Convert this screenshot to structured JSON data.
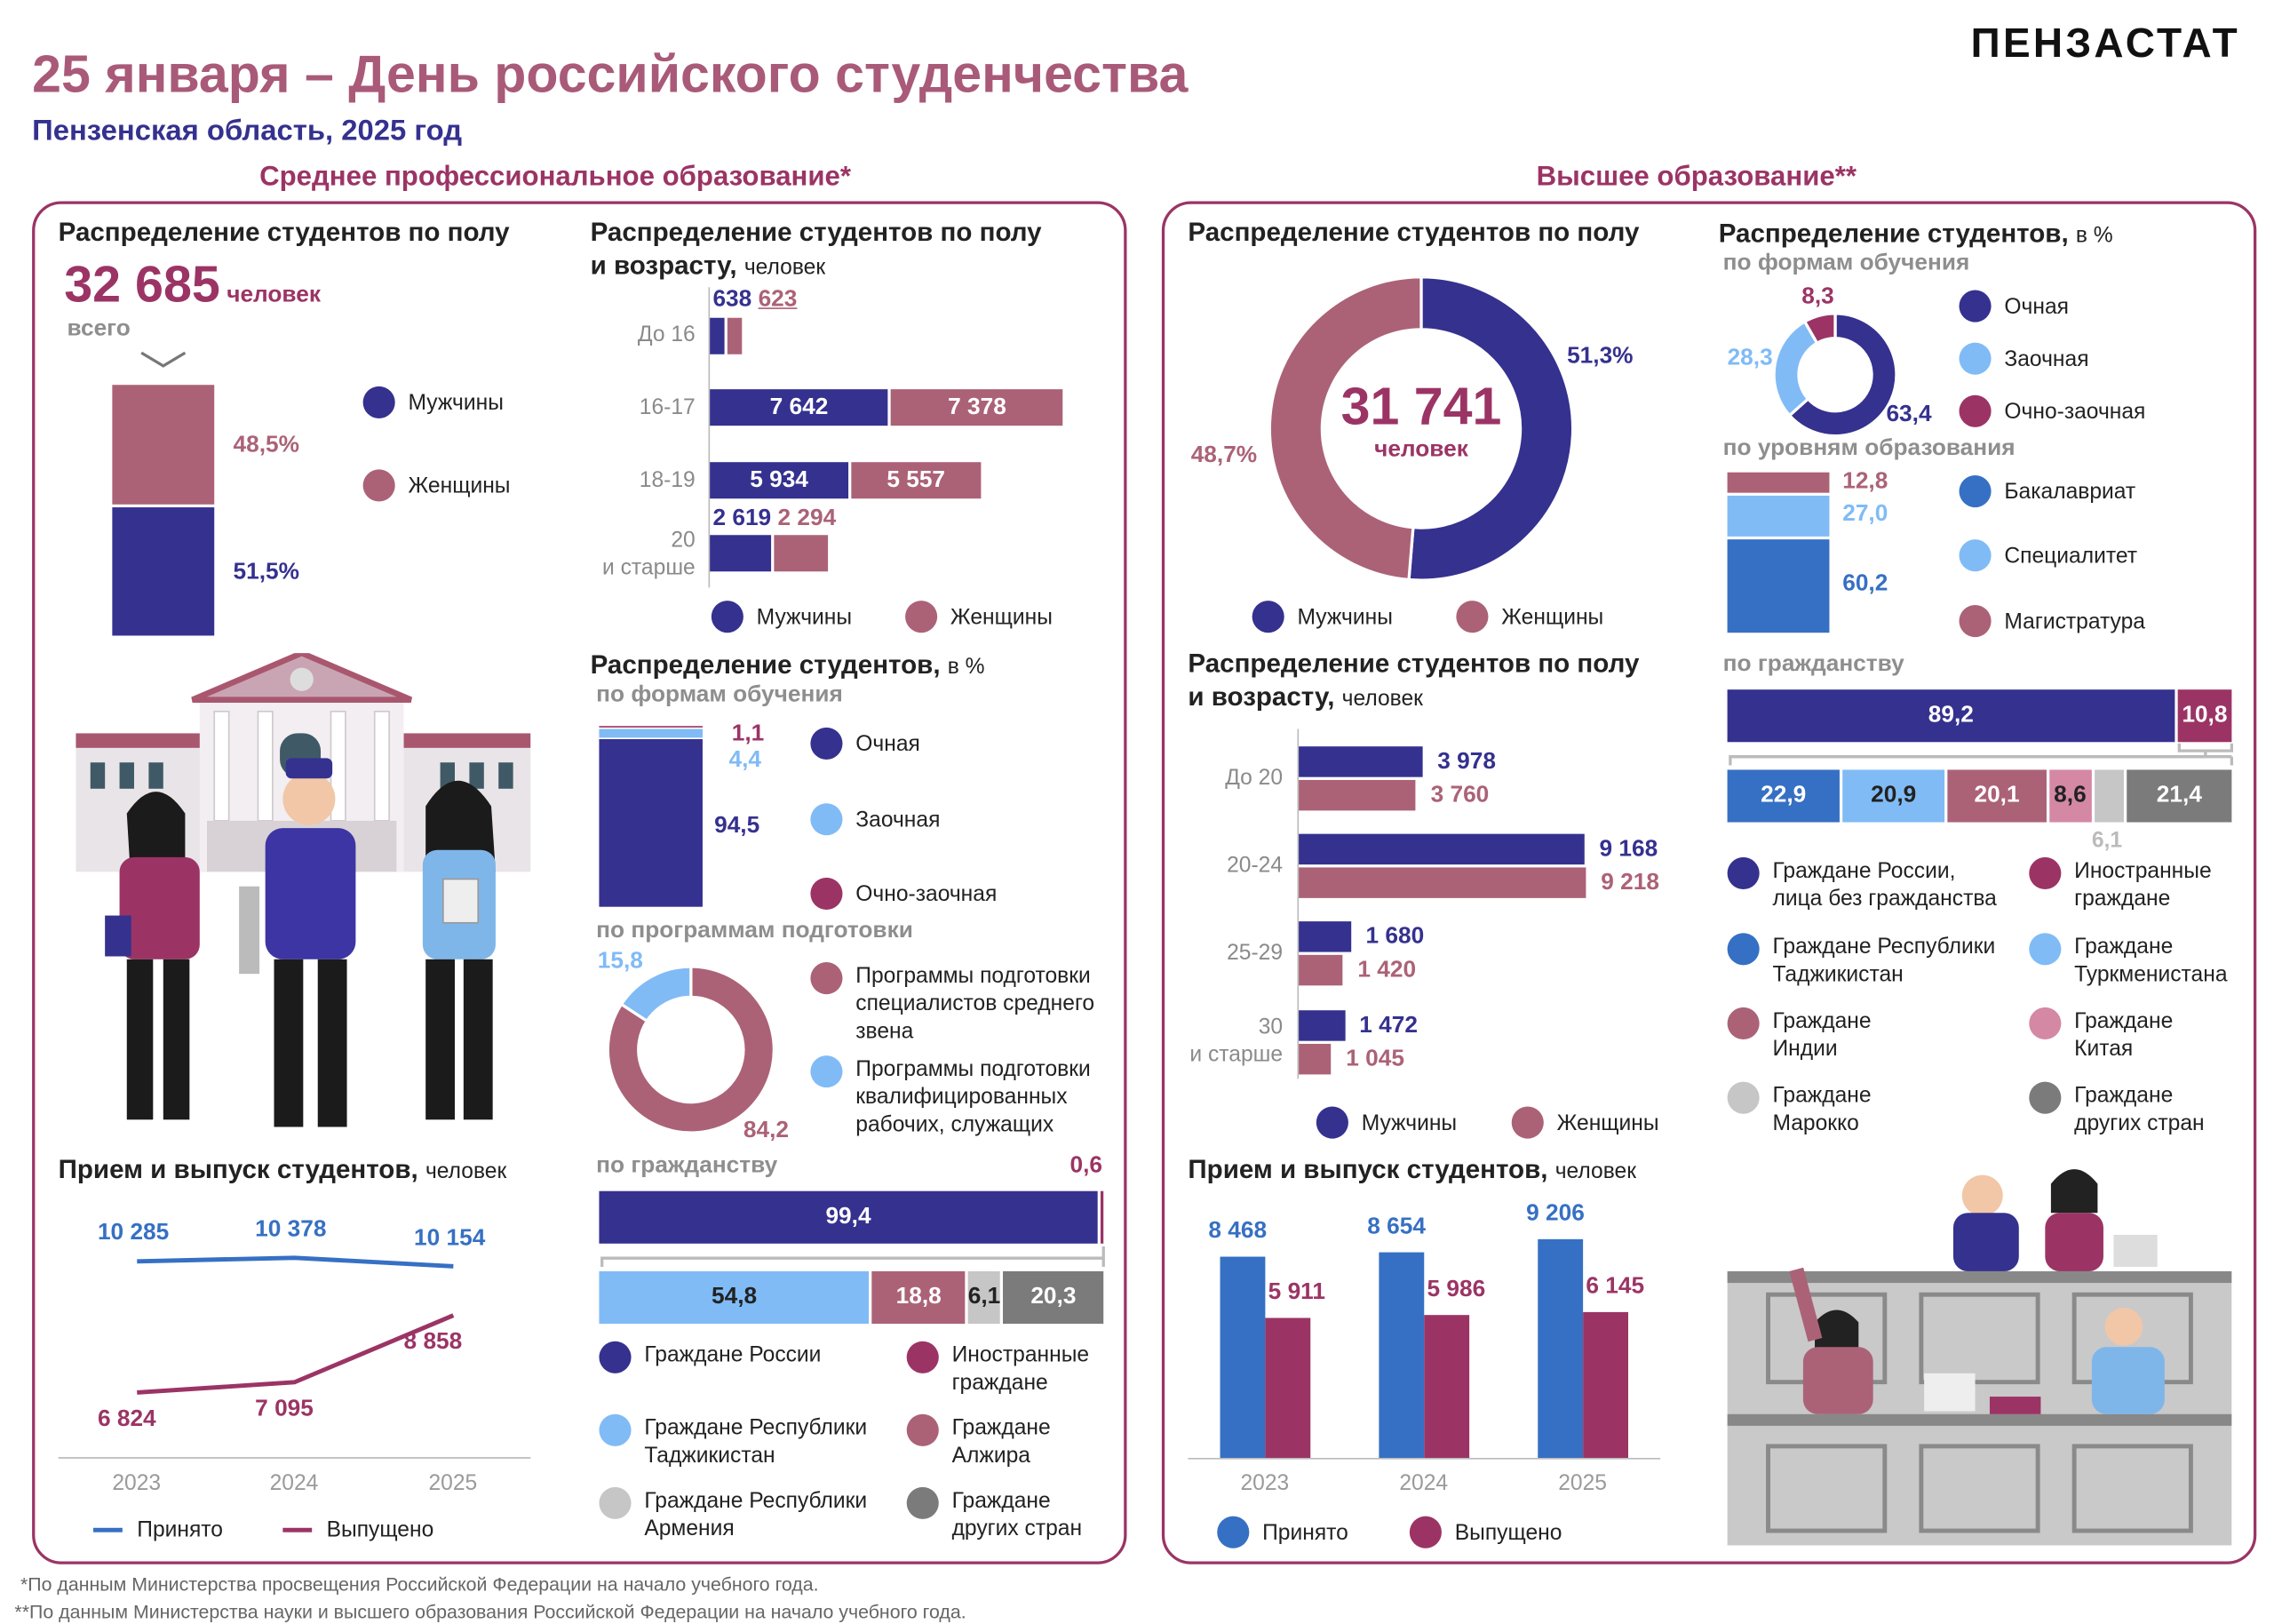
{
  "header": {
    "title": "25 января – День российского студенчества",
    "subtitle": "Пензенская область, 2025 год",
    "logo": "ПЕНЗАСТАТ"
  },
  "sections": {
    "spo": "Среднее профессиональное образование*",
    "vo": "Высшее образование**"
  },
  "footnotes": [
    "*По данным Министерства просвещения Российской Федерации на начало учебного года.",
    "**По данным Министерства науки и высшего образования Российской Федерации на начало учебного года."
  ],
  "colors": {
    "men": "#35318f",
    "women": "#ab6277",
    "foreign": "#9b3465",
    "light_blue": "#80bbf6",
    "blue": "#3670c4",
    "gray": "#7b7b7b",
    "light_gray": "#c6c6c6",
    "pink": "#d488a4",
    "title": "#a95a78"
  },
  "chart_data": [
    {
      "type": "bar",
      "stacked": true,
      "section": "spo",
      "title": "Распределение студентов по полу",
      "total": "32 685",
      "total_unit": "человек",
      "total_caption": "всего",
      "series": [
        {
          "name": "Мужчины",
          "value": 51.5,
          "text": "51,5%"
        },
        {
          "name": "Женщины",
          "value": 48.5,
          "text": "48,5%"
        }
      ]
    },
    {
      "type": "bar",
      "orientation": "horizontal",
      "section": "spo",
      "title": "Распределение студентов по полу",
      "title2": "и возрасту,",
      "unit": "человек",
      "categories": [
        "До 16",
        "16-17",
        "18-19",
        "20\nи старше"
      ],
      "series": [
        {
          "name": "Мужчины",
          "values": [
            638,
            7642,
            5934,
            2619
          ],
          "texts": [
            "638",
            "7 642",
            "5 934",
            "2 619"
          ]
        },
        {
          "name": "Женщины",
          "values": [
            623,
            7378,
            5557,
            2294
          ],
          "texts": [
            "623",
            "7 378",
            "5 557",
            "2 294"
          ]
        }
      ]
    },
    {
      "type": "bar",
      "stacked": true,
      "section": "spo",
      "title": "Распределение студентов,",
      "unit": "в %",
      "subtitle": "по формам обучения",
      "series": [
        {
          "name": "Очная",
          "value": 94.5,
          "text": "94,5"
        },
        {
          "name": "Заочная",
          "value": 4.4,
          "text": "4,4"
        },
        {
          "name": "Очно-заочная",
          "value": 1.1,
          "text": "1,1"
        }
      ]
    },
    {
      "type": "pie",
      "donut": true,
      "section": "spo",
      "subtitle": "по программам подготовки",
      "series": [
        {
          "name": "Программы подготовки специалистов среднего звена",
          "value": 84.2,
          "text": "84,2"
        },
        {
          "name": "Программы подготовки квалифицированных рабочих, служащих",
          "value": 15.8,
          "text": "15,8"
        }
      ]
    },
    {
      "type": "bar",
      "stacked": true,
      "section": "spo",
      "subtitle": "по гражданству",
      "total_bar": [
        {
          "name": "Граждане России",
          "value": 99.4,
          "text": "99,4"
        },
        {
          "name": "Иностранные\nграждане",
          "value": 0.6,
          "text": "0,6"
        }
      ],
      "foreign_bar": [
        {
          "name": "Граждане Республики\nТаджикистан",
          "value": 54.8,
          "text": "54,8"
        },
        {
          "name": "Граждане\nАлжира",
          "value": 18.8,
          "text": "18,8"
        },
        {
          "name": "Граждане Республики\nАрмения",
          "value": 6.1,
          "text": "6,1"
        },
        {
          "name": "Граждане\nдругих стран",
          "value": 20.3,
          "text": "20,3"
        }
      ]
    },
    {
      "type": "line",
      "section": "spo",
      "title": "Прием и выпуск студентов,",
      "unit": "человек",
      "x": [
        "2023",
        "2024",
        "2025"
      ],
      "series": [
        {
          "name": "Принято",
          "values": [
            10285,
            10378,
            10154
          ],
          "texts": [
            "10 285",
            "10 378",
            "10 154"
          ]
        },
        {
          "name": "Выпущено",
          "values": [
            6824,
            7095,
            8858
          ],
          "texts": [
            "6 824",
            "7 095",
            "8 858"
          ]
        }
      ]
    },
    {
      "type": "pie",
      "donut": true,
      "section": "vo",
      "title": "Распределение студентов по полу",
      "total": "31 741",
      "total_unit": "человек",
      "series": [
        {
          "name": "Мужчины",
          "value": 51.3,
          "text": "51,3%"
        },
        {
          "name": "Женщины",
          "value": 48.7,
          "text": "48,7%"
        }
      ]
    },
    {
      "type": "bar",
      "orientation": "horizontal",
      "section": "vo",
      "title": "Распределение студентов по полу",
      "title2": "и возрасту,",
      "unit": "человек",
      "categories": [
        "До 20",
        "20-24",
        "25-29",
        "30\nи старше"
      ],
      "series": [
        {
          "name": "Мужчины",
          "values": [
            3978,
            9168,
            1680,
            1472
          ],
          "texts": [
            "3 978",
            "9 168",
            "1 680",
            "1 472"
          ]
        },
        {
          "name": "Женщины",
          "values": [
            3760,
            9218,
            1420,
            1045
          ],
          "texts": [
            "3 760",
            "9 218",
            "1 420",
            "1 045"
          ]
        }
      ]
    },
    {
      "type": "pie",
      "donut": true,
      "section": "vo",
      "title": "Распределение студентов,",
      "unit": "в %",
      "subtitle": "по формам обучения",
      "series": [
        {
          "name": "Очная",
          "value": 63.4,
          "text": "63,4"
        },
        {
          "name": "Заочная",
          "value": 28.3,
          "text": "28,3"
        },
        {
          "name": "Очно-заочная",
          "value": 8.3,
          "text": "8,3"
        }
      ]
    },
    {
      "type": "bar",
      "stacked": true,
      "section": "vo",
      "subtitle": "по уровням образования",
      "series": [
        {
          "name": "Бакалавриат",
          "value": 60.2,
          "text": "60,2"
        },
        {
          "name": "Специалитет",
          "value": 27.0,
          "text": "27,0"
        },
        {
          "name": "Магистратура",
          "value": 12.8,
          "text": "12,8"
        }
      ]
    },
    {
      "type": "bar",
      "stacked": true,
      "section": "vo",
      "subtitle": "по гражданству",
      "total_bar": [
        {
          "name": "Граждане России,\nлица без гражданства",
          "value": 89.2,
          "text": "89,2"
        },
        {
          "name": "Иностранные\nграждане",
          "value": 10.8,
          "text": "10,8"
        }
      ],
      "foreign_bar": [
        {
          "name": "Граждане Республики\nТаджикистан",
          "value": 22.9,
          "text": "22,9"
        },
        {
          "name": "Граждане\nТуркменистана",
          "value": 20.9,
          "text": "20,9"
        },
        {
          "name": "Граждане\nИндии",
          "value": 20.1,
          "text": "20,1"
        },
        {
          "name": "Граждане\nКитая",
          "value": 8.6,
          "text": "8,6"
        },
        {
          "name": "Граждане\nМарокко",
          "value": 6.1,
          "text": "6,1"
        },
        {
          "name": "Граждане\nдругих стран",
          "value": 21.4,
          "text": "21,4"
        }
      ]
    },
    {
      "type": "bar",
      "section": "vo",
      "title": "Прием и выпуск студентов,",
      "unit": "человек",
      "categories": [
        "2023",
        "2024",
        "2025"
      ],
      "series": [
        {
          "name": "Принято",
          "values": [
            8468,
            8654,
            9206
          ],
          "texts": [
            "8 468",
            "8 654",
            "9 206"
          ]
        },
        {
          "name": "Выпущено",
          "values": [
            5911,
            5986,
            6145
          ],
          "texts": [
            "5 911",
            "5 986",
            "6 145"
          ]
        }
      ]
    }
  ]
}
